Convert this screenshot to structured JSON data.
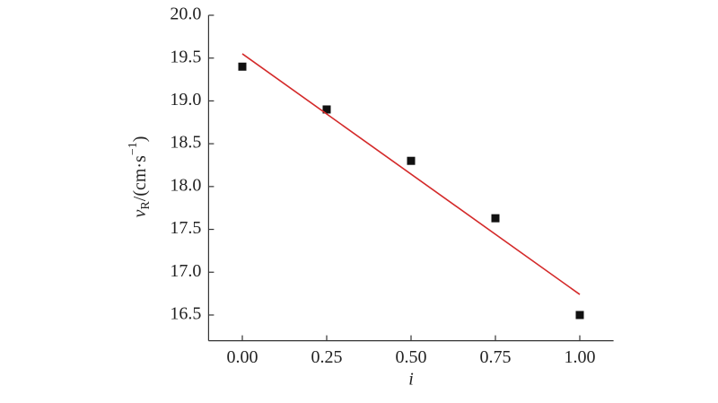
{
  "chart_data": {
    "type": "scatter",
    "xlabel": "i",
    "ylabel": [
      "v",
      "R",
      "/(cm·s",
      "−1",
      ")"
    ],
    "xlim": [
      -0.1,
      1.1
    ],
    "ylim": [
      16.2,
      20.0
    ],
    "xticks": [
      {
        "value": 0,
        "label": "0.00"
      },
      {
        "value": 0.25,
        "label": "0.25"
      },
      {
        "value": 0.5,
        "label": "0.50"
      },
      {
        "value": 0.75,
        "label": "0.75"
      },
      {
        "value": 1,
        "label": "1.00"
      }
    ],
    "yticks": [
      {
        "value": 16.5,
        "label": "16.5"
      },
      {
        "value": 17,
        "label": "17.0"
      },
      {
        "value": 17.5,
        "label": "17.5"
      },
      {
        "value": 18,
        "label": "18.0"
      },
      {
        "value": 18.5,
        "label": "18.5"
      },
      {
        "value": 19,
        "label": "19.0"
      },
      {
        "value": 19.5,
        "label": "19.5"
      },
      {
        "value": 20,
        "label": "20.0"
      }
    ],
    "series": [
      {
        "mode": "markers",
        "color": "#111111",
        "x": [
          0,
          0.25,
          0.5,
          0.75,
          1
        ],
        "values": [
          19.4,
          18.9,
          18.3,
          17.63,
          16.5
        ]
      },
      {
        "mode": "line",
        "color": "#d42a2a",
        "x": [
          0,
          1
        ],
        "values": [
          19.55,
          16.74
        ]
      }
    ]
  }
}
